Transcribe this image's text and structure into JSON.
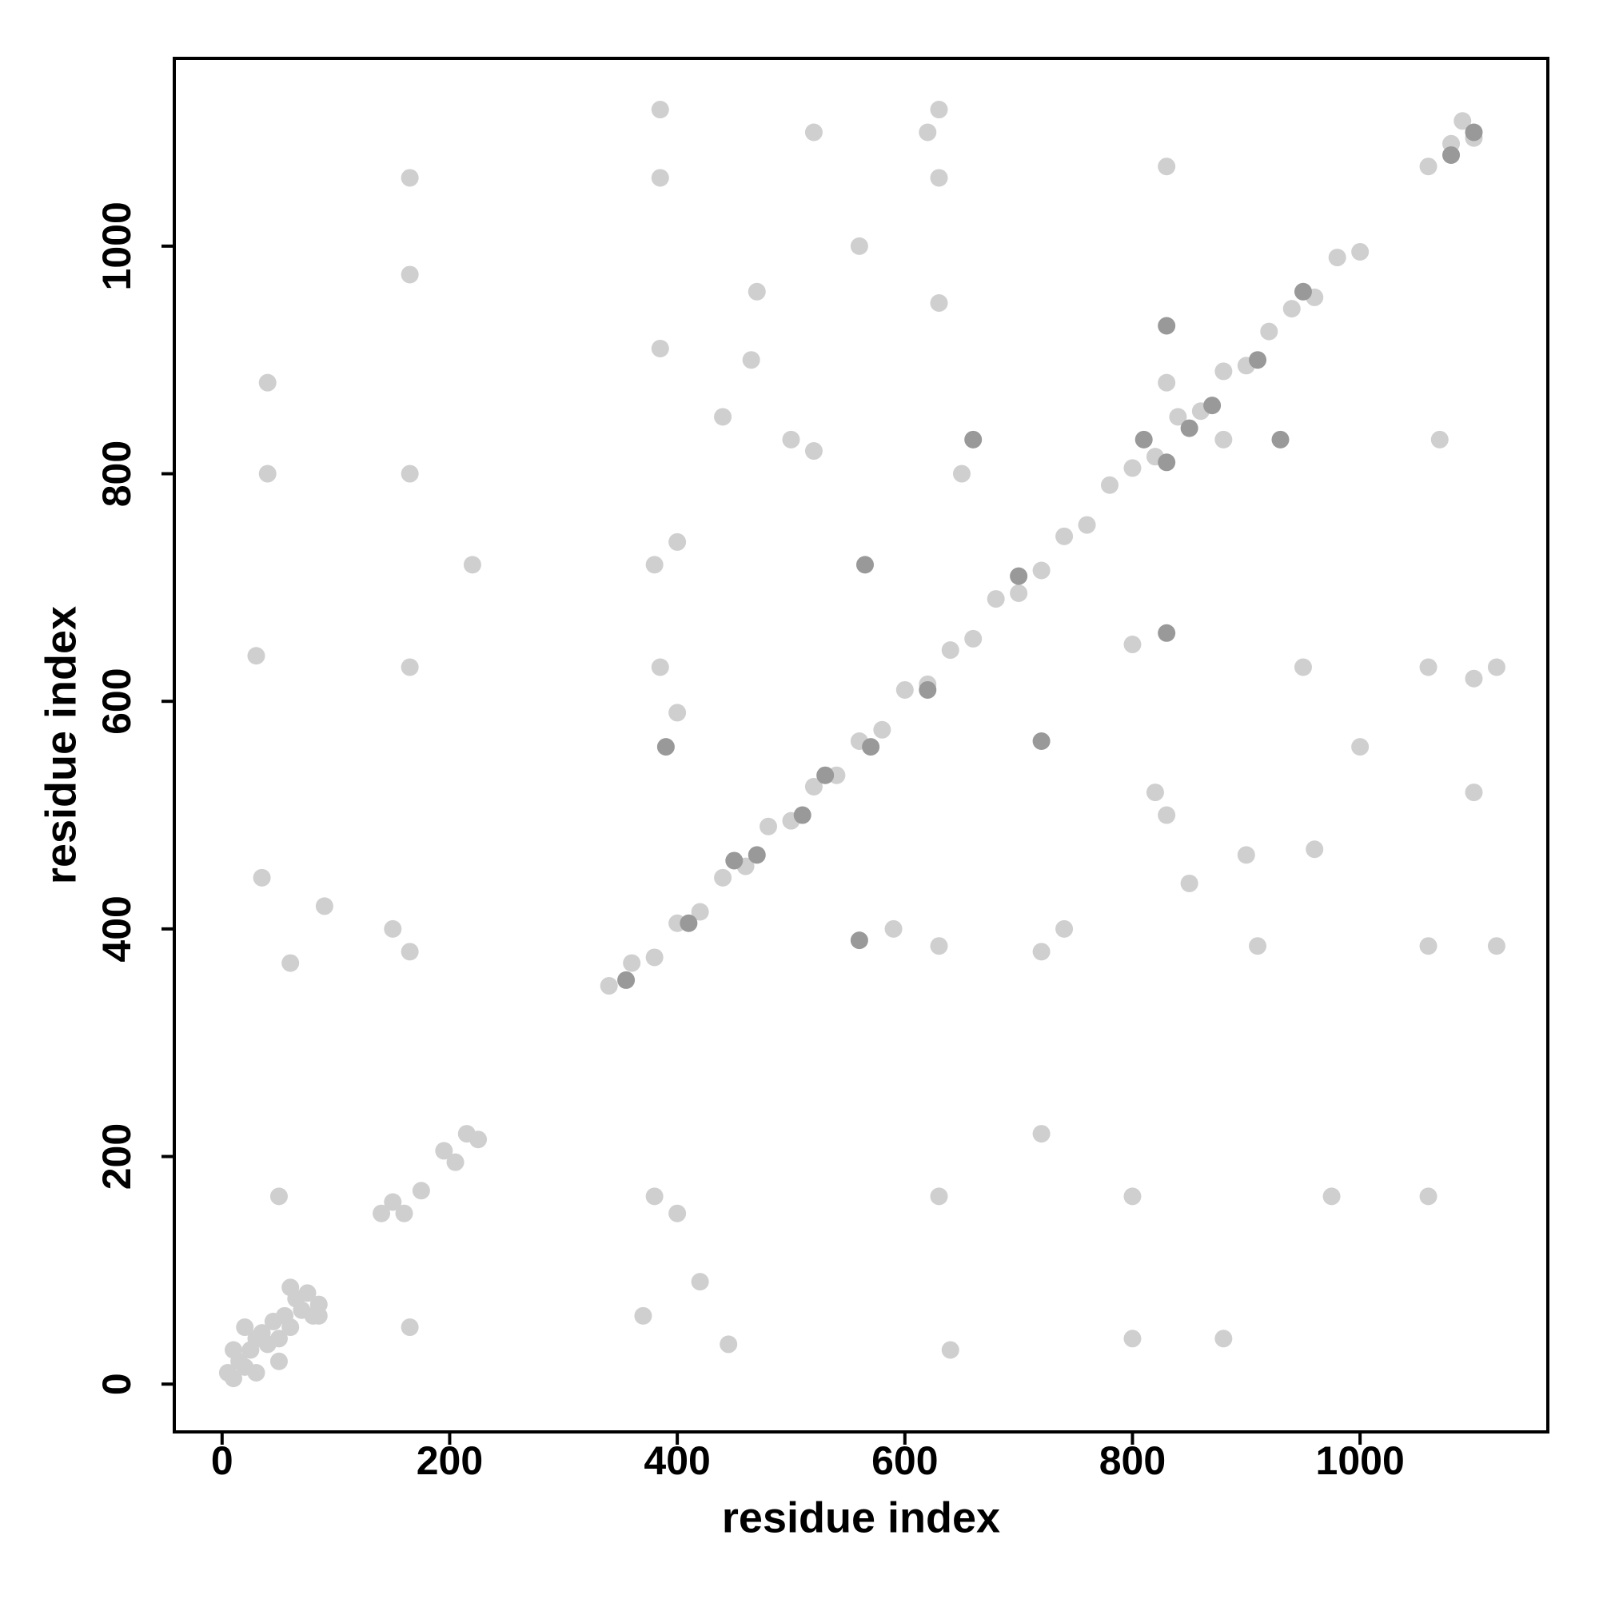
{
  "chart_data": {
    "type": "scatter",
    "xlabel": "residue index",
    "ylabel": "residue index",
    "xlim": [
      -42,
      1165
    ],
    "ylim": [
      -42,
      1165
    ],
    "xticks": [
      0,
      200,
      400,
      600,
      800,
      1000
    ],
    "yticks": [
      0,
      200,
      400,
      600,
      800,
      1000
    ],
    "series": [
      {
        "color": "#cfcfcf",
        "x": [
          5,
          10,
          15,
          20,
          25,
          30,
          35,
          40,
          45,
          50,
          55,
          60,
          65,
          70,
          75,
          80,
          85,
          30,
          10,
          50,
          20,
          60,
          85,
          150,
          160,
          175,
          195,
          205,
          215,
          225,
          140,
          340,
          360,
          380,
          400,
          420,
          440,
          460,
          480,
          500,
          520,
          540,
          560,
          580,
          600,
          620,
          640,
          660,
          680,
          700,
          720,
          740,
          760,
          780,
          800,
          820,
          840,
          860,
          880,
          900,
          920,
          940,
          960,
          980,
          1000,
          1080,
          1100,
          1060,
          1090,
          165,
          380,
          165,
          630,
          165,
          975,
          165,
          1060,
          165,
          800,
          385,
          1060,
          630,
          1060,
          630,
          385,
          50,
          165,
          30,
          640,
          445,
          35,
          465,
          900,
          500,
          830,
          470,
          960,
          820,
          520,
          380,
          720,
          850,
          440,
          880,
          830,
          620,
          1100,
          520,
          1100,
          385,
          910,
          40,
          880,
          40,
          800,
          60,
          370,
          90,
          420,
          220,
          720,
          150,
          400,
          400,
          740,
          1000,
          560,
          1070,
          830,
          1120,
          630,
          1120,
          385,
          950,
          630,
          800,
          650,
          590,
          400
        ],
        "values": [
          10,
          5,
          20,
          15,
          30,
          40,
          45,
          35,
          55,
          40,
          60,
          50,
          75,
          65,
          80,
          60,
          70,
          10,
          30,
          20,
          50,
          85,
          60,
          160,
          150,
          170,
          205,
          195,
          220,
          215,
          150,
          350,
          370,
          375,
          405,
          415,
          445,
          455,
          490,
          495,
          525,
          535,
          565,
          575,
          610,
          615,
          645,
          655,
          690,
          695,
          715,
          745,
          755,
          790,
          805,
          815,
          850,
          855,
          890,
          895,
          925,
          945,
          955,
          990,
          995,
          1090,
          1095,
          1070,
          1110,
          380,
          165,
          630,
          165,
          975,
          165,
          1060,
          165,
          800,
          165,
          1060,
          385,
          1060,
          630,
          385,
          630,
          165,
          50,
          640,
          30,
          35,
          445,
          900,
          465,
          830,
          500,
          960,
          470,
          520,
          820,
          720,
          380,
          440,
          850,
          830,
          880,
          1100,
          620,
          1100,
          520,
          910,
          385,
          880,
          40,
          800,
          40,
          370,
          60,
          420,
          90,
          720,
          220,
          400,
          150,
          740,
          400,
          560,
          1000,
          830,
          1070,
          630,
          1120,
          385,
          1120,
          630,
          950,
          650,
          800,
          400,
          590
        ]
      },
      {
        "color": "#999999",
        "x": [
          355,
          410,
          450,
          470,
          510,
          530,
          570,
          620,
          700,
          810,
          830,
          850,
          870,
          910,
          950,
          1100,
          1080,
          565,
          720,
          560,
          390,
          830,
          660,
          930,
          830
        ],
        "values": [
          355,
          405,
          460,
          465,
          500,
          535,
          560,
          610,
          710,
          830,
          810,
          840,
          860,
          900,
          960,
          1100,
          1080,
          720,
          565,
          390,
          560,
          660,
          830,
          830,
          930
        ]
      }
    ]
  }
}
